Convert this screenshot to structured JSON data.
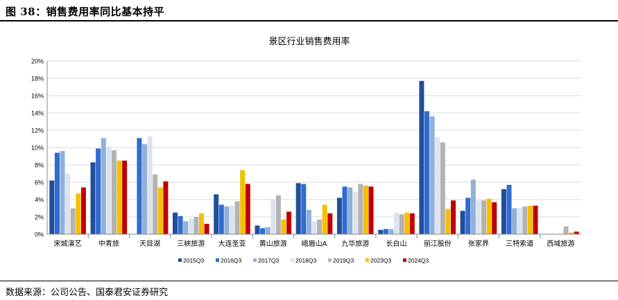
{
  "figure": {
    "label": "图 38：销售费用率同比基本持平",
    "source": "数据来源：公司公告、国泰君安证券研究"
  },
  "colors": {
    "grid": "#d9d9d9",
    "axis": "#888888",
    "text": "#000000"
  },
  "chart_data": {
    "type": "bar",
    "title": "景区行业销售费用率",
    "xlabel": "",
    "ylabel": "",
    "ylim": [
      0,
      20
    ],
    "yticks": [
      0,
      2,
      4,
      6,
      8,
      10,
      12,
      14,
      16,
      18,
      20
    ],
    "ytick_labels": [
      "0%",
      "2%",
      "4%",
      "6%",
      "8%",
      "10%",
      "12%",
      "14%",
      "16%",
      "18%",
      "20%"
    ],
    "grid": true,
    "legend_position": "bottom",
    "categories": [
      "宋城演艺",
      "中青旅",
      "天目湖",
      "三峡旅游",
      "大连圣亚",
      "黄山旅游",
      "峨眉山A",
      "九华旅游",
      "长白山",
      "丽江股份",
      "张家界",
      "三特索道",
      "西域旅游"
    ],
    "series": [
      {
        "name": "2015Q3",
        "color": "#1f4e9c",
        "values": [
          6.2,
          8.3,
          null,
          2.5,
          4.6,
          1.0,
          5.9,
          4.2,
          0.5,
          17.7,
          2.7,
          5.2,
          null
        ]
      },
      {
        "name": "2016Q3",
        "color": "#2f6bd0",
        "values": [
          9.4,
          9.9,
          11.1,
          2.1,
          3.4,
          0.7,
          5.8,
          5.5,
          0.6,
          14.2,
          4.2,
          5.7,
          null
        ]
      },
      {
        "name": "2017Q3",
        "color": "#8fb0d9",
        "values": [
          9.6,
          11.1,
          10.4,
          1.5,
          3.2,
          0.8,
          2.8,
          5.4,
          0.6,
          13.6,
          6.3,
          3.0,
          null
        ]
      },
      {
        "name": "2018Q3",
        "color": "#dde3ee",
        "values": [
          7.0,
          10.1,
          11.3,
          1.8,
          3.3,
          4.0,
          1.5,
          4.9,
          2.5,
          11.2,
          3.9,
          3.0,
          null
        ]
      },
      {
        "name": "2019Q3",
        "color": "#b3b3b3",
        "values": [
          3.0,
          9.7,
          6.9,
          2.0,
          3.8,
          4.5,
          1.7,
          5.8,
          2.3,
          10.6,
          3.9,
          3.2,
          0.9
        ]
      },
      {
        "name": "2023Q3",
        "color": "#f5c000",
        "values": [
          4.7,
          8.5,
          5.4,
          2.4,
          7.4,
          1.7,
          3.4,
          5.6,
          2.5,
          2.9,
          4.1,
          3.3,
          0.2
        ]
      },
      {
        "name": "2024Q3",
        "color": "#c00000",
        "values": [
          5.4,
          8.5,
          6.1,
          1.2,
          5.8,
          2.6,
          2.4,
          5.5,
          2.4,
          3.9,
          3.7,
          3.3,
          0.3
        ]
      }
    ]
  }
}
